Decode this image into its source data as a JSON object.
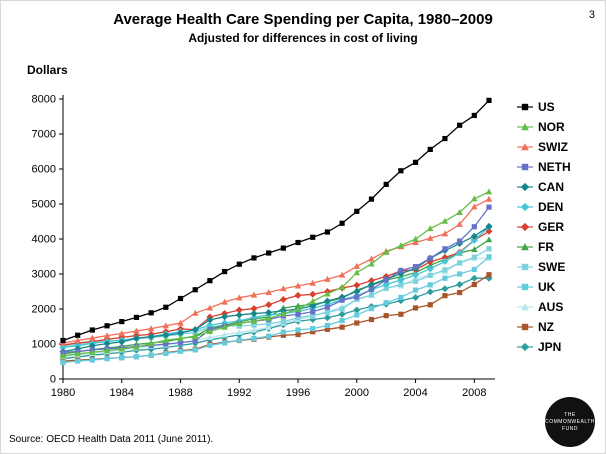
{
  "page": {
    "page_number": "3",
    "source": "Source: OECD Health Data 2011 (June 2011).",
    "logo_lines": [
      "THE",
      "COMMONWEALTH",
      "FUND"
    ]
  },
  "chart_data": {
    "type": "line",
    "title": "Average Health Care Spending per Capita, 1980–2009",
    "subtitle": "Adjusted for differences in cost of living",
    "xlabel": "",
    "ylabel": "Dollars",
    "ylim": [
      0,
      8000
    ],
    "ytick_step": 1000,
    "grid": false,
    "legend_position": "right",
    "x": [
      1980,
      1981,
      1982,
      1983,
      1984,
      1985,
      1986,
      1987,
      1988,
      1989,
      1990,
      1991,
      1992,
      1993,
      1994,
      1995,
      1996,
      1997,
      1998,
      1999,
      2000,
      2001,
      2002,
      2003,
      2004,
      2005,
      2006,
      2007,
      2008,
      2009
    ],
    "xticks": [
      1980,
      1984,
      1988,
      1992,
      1996,
      2000,
      2004,
      2008
    ],
    "series": [
      {
        "name": "US",
        "color": "#000000",
        "marker": "square",
        "values": [
          1100,
          1250,
          1400,
          1520,
          1640,
          1760,
          1890,
          2050,
          2300,
          2550,
          2810,
          3070,
          3280,
          3460,
          3600,
          3740,
          3900,
          4050,
          4200,
          4450,
          4790,
          5140,
          5560,
          5950,
          6190,
          6560,
          6870,
          7250,
          7530,
          7960
        ]
      },
      {
        "name": "NOR",
        "color": "#64be46",
        "marker": "triangle",
        "values": [
          660,
          720,
          760,
          810,
          860,
          910,
          1010,
          1110,
          1160,
          1210,
          1360,
          1480,
          1590,
          1650,
          1730,
          1860,
          2000,
          2220,
          2430,
          2620,
          3040,
          3290,
          3620,
          3810,
          4000,
          4300,
          4510,
          4760,
          5150,
          5350
        ]
      },
      {
        "name": "SWIZ",
        "color": "#f0705a",
        "marker": "triangle",
        "values": [
          1030,
          1100,
          1170,
          1240,
          1300,
          1370,
          1440,
          1520,
          1600,
          1880,
          2030,
          2200,
          2320,
          2400,
          2470,
          2580,
          2660,
          2740,
          2850,
          2970,
          3220,
          3430,
          3650,
          3780,
          3900,
          4020,
          4150,
          4420,
          4920,
          5140
        ]
      },
      {
        "name": "NETH",
        "color": "#6672c8",
        "marker": "square",
        "values": [
          760,
          790,
          830,
          860,
          890,
          930,
          960,
          1000,
          1040,
          1090,
          1410,
          1510,
          1590,
          1650,
          1700,
          1800,
          1850,
          1920,
          2050,
          2250,
          2340,
          2560,
          2830,
          3100,
          3210,
          3450,
          3720,
          3940,
          4350,
          4910
        ]
      },
      {
        "name": "CAN",
        "color": "#17868b",
        "marker": "diamond",
        "values": [
          780,
          860,
          950,
          1010,
          1060,
          1160,
          1210,
          1250,
          1310,
          1410,
          1690,
          1780,
          1830,
          1870,
          1900,
          1950,
          2000,
          2090,
          2230,
          2340,
          2500,
          2700,
          2850,
          3010,
          3160,
          3450,
          3670,
          3870,
          4080,
          4360
        ]
      },
      {
        "name": "DEN",
        "color": "#45c6d6",
        "marker": "diamond",
        "values": [
          900,
          950,
          1020,
          1070,
          1110,
          1170,
          1210,
          1290,
          1350,
          1400,
          1540,
          1600,
          1660,
          1760,
          1830,
          1870,
          1930,
          2020,
          2130,
          2270,
          2380,
          2550,
          2700,
          2830,
          2970,
          3150,
          3360,
          3600,
          3960,
          4350
        ]
      },
      {
        "name": "GER",
        "color": "#d9402e",
        "marker": "diamond",
        "values": [
          970,
          1030,
          1070,
          1130,
          1190,
          1240,
          1280,
          1350,
          1430,
          1410,
          1770,
          1870,
          1970,
          2010,
          2120,
          2270,
          2390,
          2420,
          2500,
          2600,
          2680,
          2810,
          2930,
          3090,
          3120,
          3350,
          3470,
          3620,
          3970,
          4220
        ]
      },
      {
        "name": "FR",
        "color": "#3da648",
        "marker": "triangle",
        "values": [
          710,
          780,
          840,
          890,
          930,
          990,
          1030,
          1070,
          1150,
          1230,
          1450,
          1540,
          1630,
          1720,
          1770,
          2030,
          2090,
          2130,
          2210,
          2310,
          2540,
          2680,
          2830,
          2920,
          3040,
          3250,
          3420,
          3600,
          3700,
          3980
        ]
      },
      {
        "name": "SWE",
        "color": "#7ed3dd",
        "marker": "square",
        "values": [
          940,
          990,
          1040,
          1080,
          1110,
          1160,
          1180,
          1230,
          1280,
          1330,
          1490,
          1530,
          1510,
          1540,
          1580,
          1640,
          1750,
          1820,
          1900,
          2000,
          2280,
          2400,
          2590,
          2700,
          2790,
          2960,
          3120,
          3320,
          3480,
          3720
        ]
      },
      {
        "name": "UK",
        "color": "#66ccdd",
        "marker": "square",
        "values": [
          470,
          510,
          540,
          580,
          610,
          640,
          680,
          730,
          790,
          830,
          960,
          1030,
          1110,
          1160,
          1220,
          1340,
          1400,
          1440,
          1530,
          1670,
          1830,
          2010,
          2180,
          2330,
          2540,
          2690,
          2880,
          3000,
          3130,
          3490
        ]
      },
      {
        "name": "AUS",
        "color": "#b8e6ee",
        "marker": "triangle",
        "values": [
          640,
          690,
          730,
          780,
          830,
          890,
          940,
          970,
          1030,
          1090,
          1190,
          1260,
          1330,
          1400,
          1470,
          1600,
          1700,
          1800,
          1920,
          2060,
          2270,
          2390,
          2600,
          2660,
          2870,
          2980,
          3070,
          3310,
          3450,
          3450
        ]
      },
      {
        "name": "NZ",
        "color": "#a8552b",
        "marker": "square",
        "values": [
          510,
          540,
          560,
          590,
          610,
          640,
          680,
          750,
          810,
          850,
          990,
          1050,
          1100,
          1140,
          1200,
          1250,
          1270,
          1350,
          1420,
          1480,
          1600,
          1700,
          1810,
          1850,
          2030,
          2120,
          2380,
          2470,
          2700,
          2980
        ]
      },
      {
        "name": "JPN",
        "color": "#2d9c9c",
        "marker": "diamond",
        "values": [
          580,
          630,
          680,
          720,
          760,
          820,
          850,
          900,
          960,
          1020,
          1120,
          1190,
          1260,
          1340,
          1440,
          1550,
          1650,
          1700,
          1750,
          1850,
          1970,
          2070,
          2140,
          2240,
          2330,
          2490,
          2580,
          2700,
          2880,
          2880
        ]
      }
    ]
  }
}
